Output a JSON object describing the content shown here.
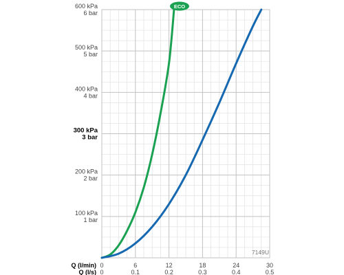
{
  "chart_data": {
    "type": "line",
    "x_axis_primary": {
      "label": "Q (l/min)",
      "ticks": [
        0,
        6,
        12,
        18,
        24,
        30
      ],
      "range": [
        0,
        30
      ]
    },
    "x_axis_secondary": {
      "label": "Q (l/s)",
      "ticks": [
        "0",
        "0.1",
        "0.2",
        "0.3",
        "0.4",
        "0.5"
      ]
    },
    "y_axis": {
      "range": [
        0,
        600
      ],
      "unit": "kPa",
      "ticks": [
        {
          "value": 600,
          "kpa": "600 kPa",
          "bar": "6 bar",
          "bold": false
        },
        {
          "value": 500,
          "kpa": "500 kPa",
          "bar": "5 bar",
          "bold": false
        },
        {
          "value": 400,
          "kpa": "400 kPa",
          "bar": "4 bar",
          "bold": false
        },
        {
          "value": 300,
          "kpa": "300 kPa",
          "bar": "3 bar",
          "bold": true
        },
        {
          "value": 200,
          "kpa": "200 kPa",
          "bar": "2 bar",
          "bold": false
        },
        {
          "value": 100,
          "kpa": "100 kPa",
          "bar": "1 bar",
          "bold": false
        }
      ]
    },
    "grid": true,
    "series": [
      {
        "color": "#1aa152",
        "x": [
          0,
          1.5,
          3,
          4.5,
          6,
          7.5,
          9,
          10.5,
          12,
          12.9
        ],
        "y": [
          0,
          8,
          30,
          65,
          110,
          170,
          250,
          350,
          470,
          600
        ]
      },
      {
        "color": "#1669b0",
        "x": [
          0,
          3,
          6,
          9,
          12,
          15,
          18,
          21,
          24,
          27,
          28.5
        ],
        "y": [
          0,
          10,
          35,
          75,
          130,
          200,
          285,
          375,
          470,
          560,
          600
        ]
      }
    ],
    "annotations": {
      "eco_badge": "ECO",
      "model_code": "7149U"
    }
  }
}
